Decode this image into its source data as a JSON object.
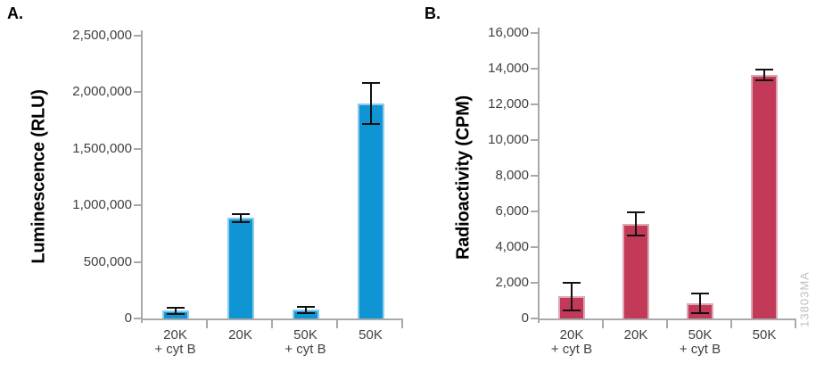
{
  "figure": {
    "watermark": "13803MA",
    "background": "#ffffff",
    "axis_color": "#a7a9ac",
    "tick_text_color": "#414042",
    "error_bar_color": "#111111",
    "watermark_color": "#bdbfc1"
  },
  "chart_data": [
    {
      "type": "bar",
      "panel_label": "A.",
      "title": "",
      "xlabel": "",
      "ylabel": "Luminescence (RLU)",
      "categories": [
        "20K + cyt B",
        "20K",
        "50K + cyt B",
        "50K"
      ],
      "category_lines": [
        [
          "20K",
          "+ cyt B"
        ],
        [
          "20K"
        ],
        [
          "50K",
          "+ cyt B"
        ],
        [
          "50K"
        ]
      ],
      "values": [
        70000,
        890000,
        78000,
        1900000
      ],
      "errors": [
        27000,
        35000,
        28000,
        180000
      ],
      "ylim": [
        0,
        2500000
      ],
      "ytick_step": 500000,
      "yticks": [
        0,
        500000,
        1000000,
        1500000,
        2000000,
        2500000
      ],
      "grid": false,
      "legend": null,
      "bar_color": "#0f95d3",
      "bar_edge_color": "#8fcceb"
    },
    {
      "type": "bar",
      "panel_label": "B.",
      "title": "",
      "xlabel": "",
      "ylabel": "Radioactivity (CPM)",
      "categories": [
        "20K + cyt B",
        "20K",
        "50K + cyt B",
        "50K"
      ],
      "category_lines": [
        [
          "20K",
          "+ cyt B"
        ],
        [
          "20K"
        ],
        [
          "50K",
          "+ cyt B"
        ],
        [
          "50K"
        ]
      ],
      "values": [
        1250,
        5300,
        850,
        13650
      ],
      "errors": [
        775,
        650,
        550,
        300
      ],
      "ylim": [
        0,
        16000
      ],
      "ytick_step": 2000,
      "yticks": [
        0,
        2000,
        4000,
        6000,
        8000,
        10000,
        12000,
        14000,
        16000
      ],
      "grid": false,
      "legend": null,
      "bar_color": "#c23a58",
      "bar_edge_color": "#dfa7b4"
    }
  ]
}
